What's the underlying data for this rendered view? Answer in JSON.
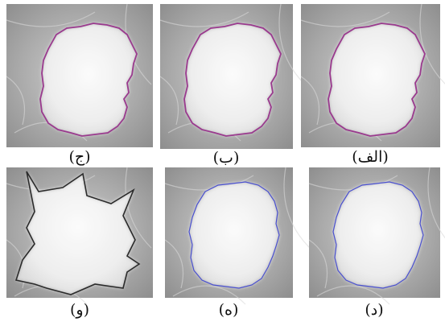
{
  "panels": [
    {
      "label": "(ج)"
    },
    {
      "label": "(ب)"
    },
    {
      "label": "(الف)"
    },
    {
      "label": "(و)"
    },
    {
      "label": "(ه)"
    },
    {
      "label": "(د)"
    }
  ]
}
